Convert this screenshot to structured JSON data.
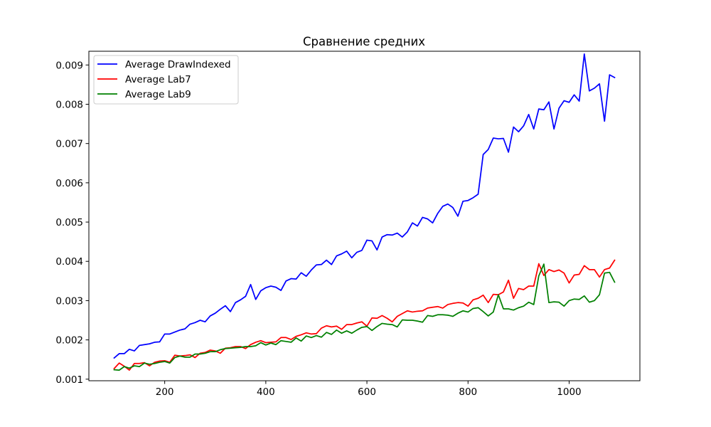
{
  "chart_data": {
    "type": "line",
    "title": "Сравнение средних",
    "xlabel": "",
    "ylabel": "",
    "xlim": [
      50,
      1140
    ],
    "ylim": [
      0.00096,
      0.00935
    ],
    "x_ticks": [
      200,
      400,
      600,
      800,
      1000
    ],
    "y_ticks": [
      0.001,
      0.002,
      0.003,
      0.004,
      0.005,
      0.006,
      0.007,
      0.008,
      0.009
    ],
    "y_tick_labels": [
      "0.001",
      "0.002",
      "0.003",
      "0.004",
      "0.005",
      "0.006",
      "0.007",
      "0.008",
      "0.009"
    ],
    "grid": false,
    "legend_position": "top-left",
    "x": [
      100,
      110,
      120,
      130,
      140,
      150,
      160,
      170,
      180,
      190,
      200,
      210,
      220,
      230,
      240,
      250,
      260,
      270,
      280,
      290,
      300,
      310,
      320,
      330,
      340,
      350,
      360,
      370,
      380,
      390,
      400,
      410,
      420,
      430,
      440,
      450,
      460,
      470,
      480,
      490,
      500,
      510,
      520,
      530,
      540,
      550,
      560,
      570,
      580,
      590,
      600,
      610,
      620,
      630,
      640,
      650,
      660,
      670,
      680,
      690,
      700,
      710,
      720,
      730,
      740,
      750,
      760,
      770,
      780,
      790,
      800,
      810,
      820,
      830,
      840,
      850,
      860,
      870,
      880,
      890,
      900,
      910,
      920,
      930,
      940,
      950,
      960,
      970,
      980,
      990,
      1000,
      1010,
      1020,
      1030,
      1040,
      1050,
      1060,
      1070,
      1080,
      1090
    ],
    "series": [
      {
        "name": "Average DrawIndexed",
        "color": "#0000ff",
        "values": [
          0.00154,
          0.00165,
          0.00165,
          0.00176,
          0.00172,
          0.00186,
          0.00188,
          0.0019,
          0.00194,
          0.00195,
          0.00215,
          0.00215,
          0.0022,
          0.00225,
          0.00228,
          0.0024,
          0.00244,
          0.0025,
          0.00246,
          0.00261,
          0.00268,
          0.00278,
          0.00287,
          0.00272,
          0.00295,
          0.00302,
          0.00311,
          0.00341,
          0.00303,
          0.00325,
          0.00333,
          0.00337,
          0.00334,
          0.00326,
          0.0035,
          0.00356,
          0.00355,
          0.00371,
          0.00362,
          0.00378,
          0.00391,
          0.00392,
          0.00403,
          0.00392,
          0.00414,
          0.00419,
          0.00426,
          0.00409,
          0.00423,
          0.00428,
          0.00454,
          0.00452,
          0.00429,
          0.00462,
          0.00468,
          0.00467,
          0.00472,
          0.00462,
          0.00475,
          0.00498,
          0.0049,
          0.00512,
          0.00508,
          0.00498,
          0.00522,
          0.0054,
          0.00546,
          0.00537,
          0.00515,
          0.00553,
          0.00555,
          0.00562,
          0.00571,
          0.00672,
          0.00685,
          0.00714,
          0.00712,
          0.00713,
          0.00678,
          0.00742,
          0.0073,
          0.00745,
          0.00774,
          0.00737,
          0.00788,
          0.00786,
          0.00806,
          0.00737,
          0.0079,
          0.00809,
          0.00805,
          0.00824,
          0.00808,
          0.00928,
          0.00834,
          0.00841,
          0.00852,
          0.00757,
          0.00875,
          0.00868
        ]
      },
      {
        "name": "Average Lab7",
        "color": "#ff0000",
        "values": [
          0.00127,
          0.00141,
          0.00133,
          0.00123,
          0.0014,
          0.0014,
          0.00142,
          0.00134,
          0.00143,
          0.00146,
          0.00147,
          0.00143,
          0.00161,
          0.00159,
          0.0016,
          0.00162,
          0.00155,
          0.00166,
          0.00168,
          0.00174,
          0.00172,
          0.00166,
          0.00179,
          0.0018,
          0.00183,
          0.00183,
          0.00178,
          0.00188,
          0.00194,
          0.00198,
          0.00193,
          0.00194,
          0.00195,
          0.00206,
          0.00206,
          0.00201,
          0.00209,
          0.00213,
          0.00218,
          0.00215,
          0.00216,
          0.0023,
          0.00236,
          0.00233,
          0.00235,
          0.00227,
          0.00239,
          0.00239,
          0.00243,
          0.00246,
          0.00235,
          0.00256,
          0.00255,
          0.00262,
          0.00255,
          0.00246,
          0.0026,
          0.00267,
          0.00274,
          0.00271,
          0.00273,
          0.00274,
          0.00281,
          0.00283,
          0.00285,
          0.00281,
          0.0029,
          0.00293,
          0.00295,
          0.00294,
          0.00286,
          0.00302,
          0.00306,
          0.00314,
          0.00295,
          0.00316,
          0.00315,
          0.00322,
          0.00352,
          0.00306,
          0.00331,
          0.00328,
          0.00337,
          0.00337,
          0.00394,
          0.00364,
          0.00379,
          0.00374,
          0.00378,
          0.0037,
          0.00345,
          0.00365,
          0.00367,
          0.00389,
          0.00379,
          0.00379,
          0.0036,
          0.00379,
          0.00383,
          0.00403
        ]
      },
      {
        "name": "Average Lab9",
        "color": "#008000",
        "values": [
          0.00124,
          0.00123,
          0.00132,
          0.00128,
          0.00134,
          0.00132,
          0.00141,
          0.00138,
          0.0014,
          0.00143,
          0.00145,
          0.00141,
          0.00155,
          0.00159,
          0.00156,
          0.00156,
          0.00164,
          0.00164,
          0.00166,
          0.0017,
          0.0017,
          0.00175,
          0.00178,
          0.00179,
          0.0018,
          0.00181,
          0.00183,
          0.00183,
          0.00185,
          0.00193,
          0.00187,
          0.00192,
          0.00188,
          0.00198,
          0.00196,
          0.00194,
          0.00205,
          0.00197,
          0.0021,
          0.00206,
          0.00211,
          0.00207,
          0.00219,
          0.00214,
          0.00225,
          0.00217,
          0.00223,
          0.00217,
          0.00225,
          0.00232,
          0.00234,
          0.00224,
          0.00234,
          0.00242,
          0.0024,
          0.00239,
          0.00233,
          0.00251,
          0.0025,
          0.0025,
          0.00248,
          0.00245,
          0.00262,
          0.0026,
          0.00264,
          0.00264,
          0.00263,
          0.0026,
          0.00268,
          0.00274,
          0.00271,
          0.0028,
          0.00282,
          0.00272,
          0.00261,
          0.00271,
          0.00315,
          0.00279,
          0.00279,
          0.00276,
          0.00282,
          0.00286,
          0.00296,
          0.0029,
          0.00363,
          0.00393,
          0.00295,
          0.00297,
          0.00296,
          0.00286,
          0.003,
          0.00304,
          0.00303,
          0.00312,
          0.00296,
          0.003,
          0.00315,
          0.0037,
          0.00372,
          0.00347
        ]
      }
    ]
  }
}
